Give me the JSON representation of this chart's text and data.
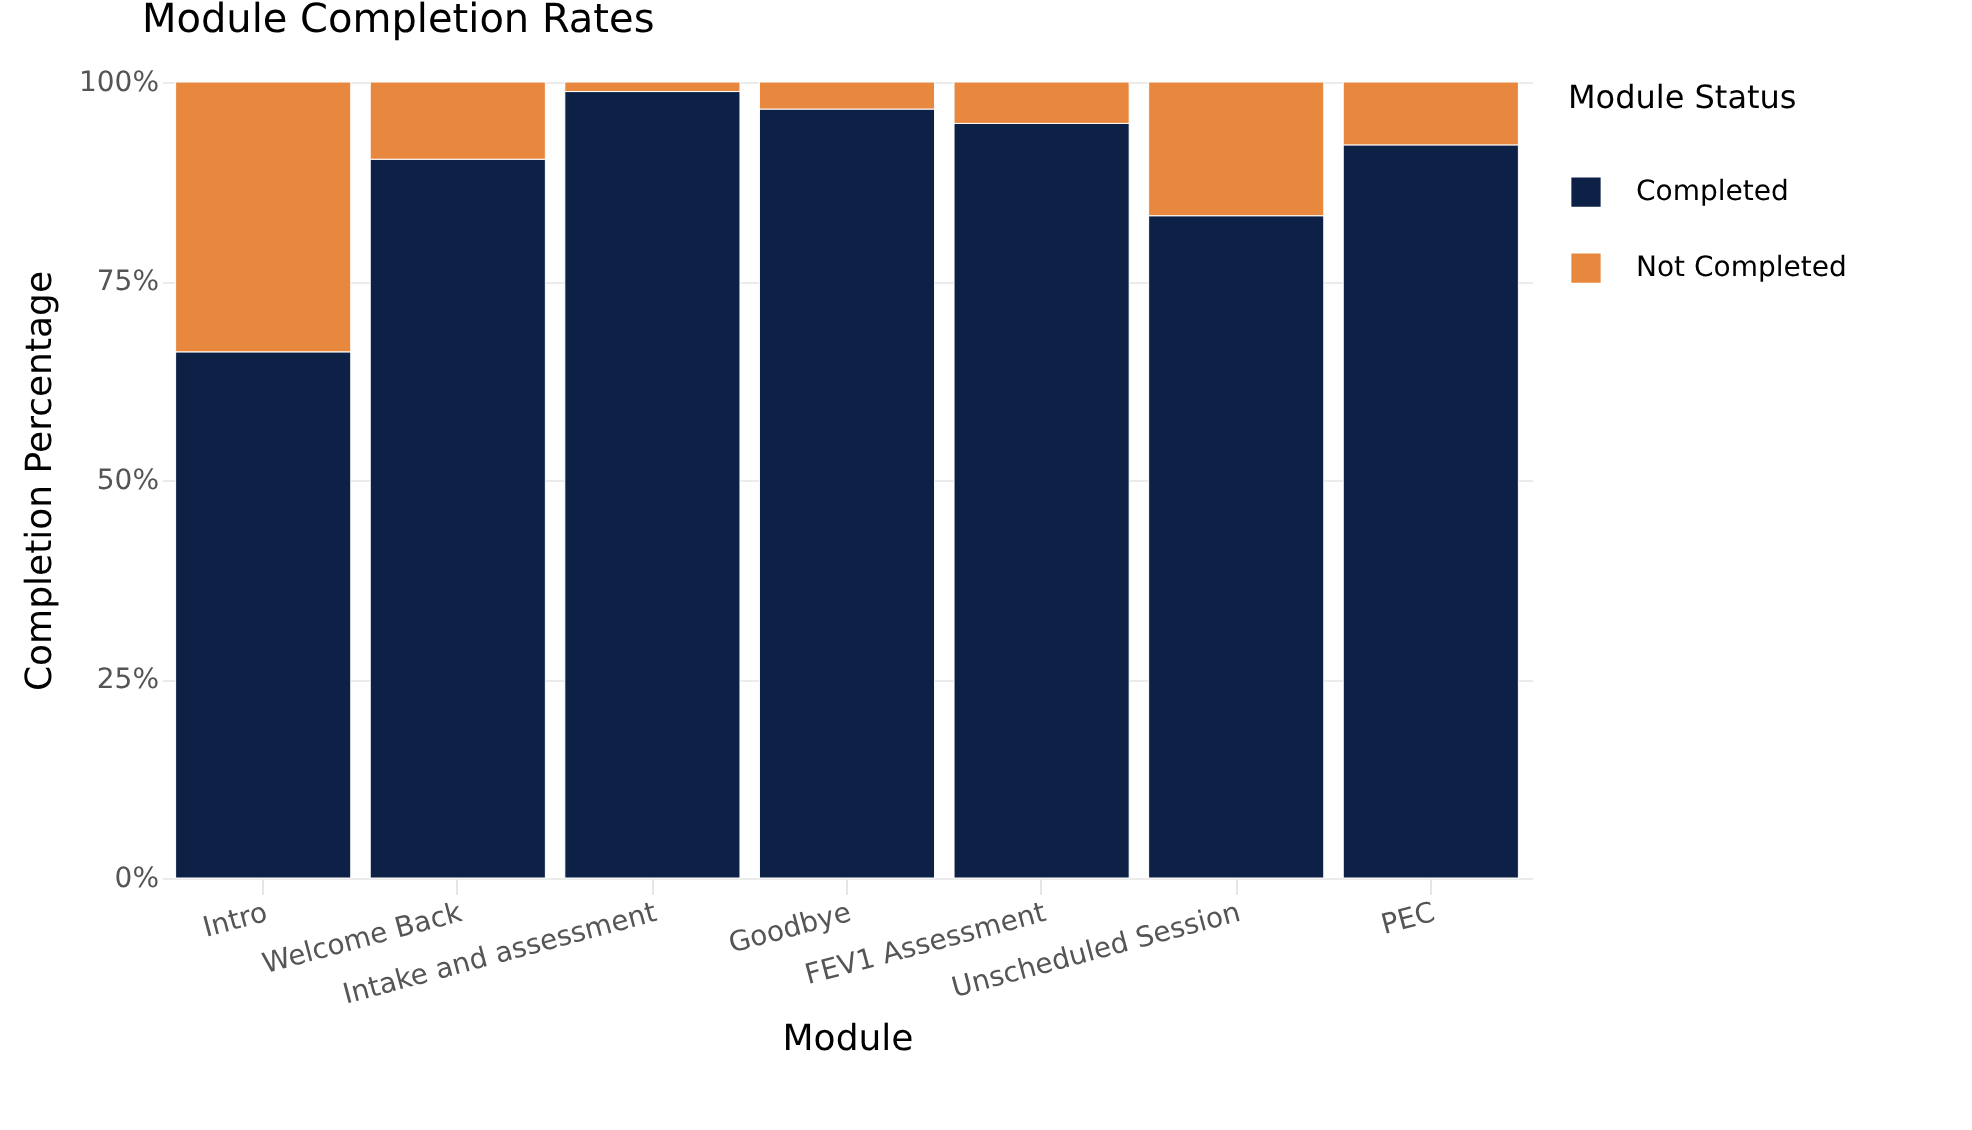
{
  "chart_data": {
    "type": "bar",
    "title": "Module Completion Rates",
    "xlabel": "Module",
    "ylabel": "Completion Percentage",
    "legend_title": "Module Status",
    "categories": [
      "Intro",
      "Welcome Back",
      "Intake and assessment",
      "Goodbye",
      "FEV1 Assessment",
      "Unscheduled Session",
      "PEC"
    ],
    "series": [
      {
        "name": "Completed",
        "color": "#0d2045",
        "values": [
          66.1,
          90.3,
          98.8,
          96.6,
          94.8,
          83.2,
          92.1
        ]
      },
      {
        "name": "Not Completed",
        "color": "#e8873e",
        "values": [
          33.9,
          9.7,
          1.2,
          3.4,
          5.2,
          16.8,
          7.9
        ]
      }
    ],
    "stacked": true,
    "ylim": [
      0,
      100
    ],
    "yticks": [
      {
        "value": 0,
        "label": "0%"
      },
      {
        "value": 25,
        "label": "25%"
      },
      {
        "value": 50,
        "label": "50%"
      },
      {
        "value": 75,
        "label": "75%"
      },
      {
        "value": 100,
        "label": "100%"
      }
    ],
    "grid": true,
    "legend": "top right"
  }
}
